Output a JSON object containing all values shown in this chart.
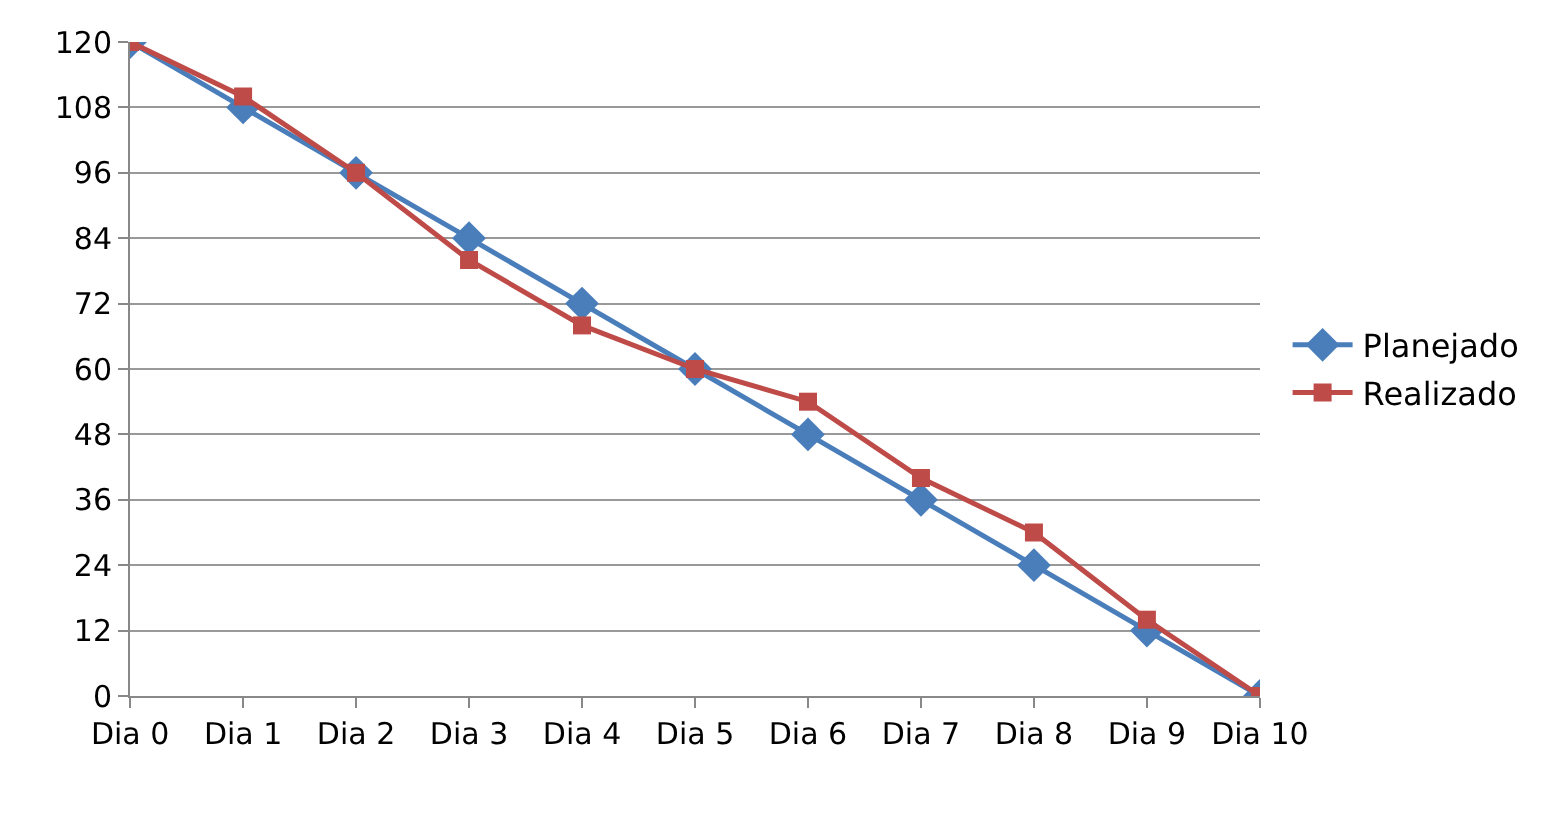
{
  "chart_data": {
    "type": "line",
    "categories": [
      "Dia 0",
      "Dia 1",
      "Dia 2",
      "Dia 3",
      "Dia 4",
      "Dia 5",
      "Dia 6",
      "Dia 7",
      "Dia 8",
      "Dia 9",
      "Dia 10"
    ],
    "series": [
      {
        "name": "Planejado",
        "color": "#4a7ebb",
        "marker": "diamond",
        "values": [
          120,
          108,
          96,
          84,
          72,
          60,
          48,
          36,
          24,
          12,
          0
        ]
      },
      {
        "name": "Realizado",
        "color": "#be4b48",
        "marker": "square",
        "values": [
          120,
          110,
          96,
          80,
          68,
          60,
          54,
          40,
          30,
          14,
          0
        ]
      }
    ],
    "ylim": [
      0,
      120
    ],
    "yticks": [
      0,
      12,
      24,
      36,
      48,
      60,
      72,
      84,
      96,
      108,
      120
    ],
    "grid": "y",
    "legend": "right",
    "line_style": "solid"
  }
}
